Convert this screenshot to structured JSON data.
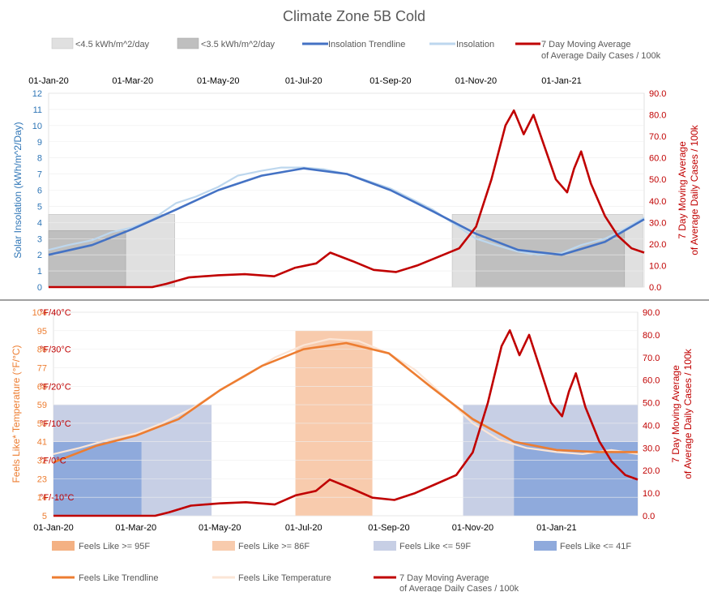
{
  "chart_data": [
    {
      "type": "line",
      "title": "Climate Zone 5B Cold",
      "y_label": "Solar Insolation (kWh/m^2/Day)",
      "y2_label_1": "7 Day Moving Average",
      "y2_label_2": "of Average Daily Cases / 100k",
      "x_ticks": [
        "01-Jan-20",
        "01-Mar-20",
        "01-May-20",
        "01-Jul-20",
        "01-Sep-20",
        "01-Nov-20",
        "01-Jan-21"
      ],
      "y_ticks": [
        "0",
        "1",
        "2",
        "3",
        "4",
        "5",
        "6",
        "7",
        "8",
        "9",
        "10",
        "11",
        "12"
      ],
      "y2_ticks": [
        "0.0",
        "10.0",
        "20.0",
        "30.0",
        "40.0",
        "50.0",
        "60.0",
        "70.0",
        "80.0",
        "90.0"
      ],
      "ylim": [
        0,
        12
      ],
      "y2lim": [
        0,
        90
      ],
      "legend": [
        {
          "label": "<4.5 kWh/m^2/day",
          "kind": "box",
          "color": "#e0e0e0"
        },
        {
          "label": "<3.5 kWh/m^2/day",
          "kind": "box",
          "color": "#bfbfbf"
        },
        {
          "label": "Insolation Trendline",
          "kind": "line",
          "color": "#4472c4"
        },
        {
          "label": "Insolation",
          "kind": "line",
          "color": "#bdd7ee"
        },
        {
          "label": "7 Day Moving Average",
          "label2": "of Average Daily Cases / 100k",
          "kind": "line",
          "color": "#c00000"
        }
      ],
      "shaded_periods_lt45": [
        [
          "2020-01-01",
          "2020-03-31"
        ],
        [
          "2020-10-15",
          "2021-02-28"
        ]
      ],
      "shaded_periods_lt35": [
        [
          "2020-01-01",
          "2020-02-25"
        ],
        [
          "2020-11-01",
          "2021-02-15"
        ]
      ],
      "insolation_trendline": [
        [
          "2020-01-01",
          2.0
        ],
        [
          "2020-02-01",
          2.6
        ],
        [
          "2020-03-01",
          3.6
        ],
        [
          "2020-04-01",
          4.8
        ],
        [
          "2020-05-01",
          6.0
        ],
        [
          "2020-06-01",
          6.9
        ],
        [
          "2020-07-01",
          7.35
        ],
        [
          "2020-08-01",
          7.0
        ],
        [
          "2020-09-01",
          6.0
        ],
        [
          "2020-10-01",
          4.7
        ],
        [
          "2020-11-01",
          3.3
        ],
        [
          "2020-12-01",
          2.3
        ],
        [
          "2021-01-01",
          2.0
        ],
        [
          "2021-02-01",
          2.8
        ],
        [
          "2021-03-01",
          4.2
        ]
      ],
      "insolation_daily": [
        [
          "2020-01-01",
          2.3
        ],
        [
          "2020-01-15",
          2.6
        ],
        [
          "2020-02-01",
          2.9
        ],
        [
          "2020-02-15",
          3.4
        ],
        [
          "2020-03-01",
          3.7
        ],
        [
          "2020-03-15",
          4.2
        ],
        [
          "2020-04-01",
          5.2
        ],
        [
          "2020-04-15",
          5.6
        ],
        [
          "2020-05-01",
          6.2
        ],
        [
          "2020-05-15",
          6.9
        ],
        [
          "2020-06-01",
          7.2
        ],
        [
          "2020-06-15",
          7.4
        ],
        [
          "2020-07-01",
          7.4
        ],
        [
          "2020-07-15",
          7.3
        ],
        [
          "2020-08-01",
          7.0
        ],
        [
          "2020-08-15",
          6.6
        ],
        [
          "2020-09-01",
          6.1
        ],
        [
          "2020-09-15",
          5.5
        ],
        [
          "2020-10-01",
          4.8
        ],
        [
          "2020-10-15",
          4.0
        ],
        [
          "2020-11-01",
          3.0
        ],
        [
          "2020-11-15",
          2.6
        ],
        [
          "2020-12-01",
          2.2
        ],
        [
          "2020-12-15",
          2.0
        ],
        [
          "2021-01-01",
          2.1
        ],
        [
          "2021-01-15",
          2.6
        ],
        [
          "2021-02-01",
          3.0
        ],
        [
          "2021-02-15",
          3.6
        ],
        [
          "2021-03-01",
          4.3
        ]
      ]
    },
    {
      "type": "line",
      "y_label": "Feels Like* Temperature (°F/°C)",
      "y2_label_1": "7 Day Moving Average",
      "y2_label_2": "of Average Daily Cases / 100k",
      "x_ticks": [
        "01-Jan-20",
        "01-Mar-20",
        "01-May-20",
        "01-Jul-20",
        "01-Sep-20",
        "01-Nov-20",
        "01-Jan-21"
      ],
      "y_ticks": [
        "5",
        "14",
        "23",
        "32",
        "41",
        "50",
        "59",
        "68",
        "77",
        "86",
        "95",
        "104"
      ],
      "celsius_marks": [
        {
          "f_value": 14,
          "text": "°F/-10°C"
        },
        {
          "f_value": 32,
          "text": "°F/0°C"
        },
        {
          "f_value": 50,
          "text": "°F/10°C"
        },
        {
          "f_value": 68,
          "text": "°F/20°C"
        },
        {
          "f_value": 86,
          "text": "°F/30°C"
        },
        {
          "f_value": 104,
          "text": "°F/40°C"
        }
      ],
      "y2_ticks": [
        "0.0",
        "10.0",
        "20.0",
        "30.0",
        "40.0",
        "50.0",
        "60.0",
        "70.0",
        "80.0",
        "90.0"
      ],
      "ylim": [
        5,
        104
      ],
      "y2lim": [
        0,
        90
      ],
      "legend": [
        {
          "label": "Feels Like >= 95F",
          "kind": "box",
          "color": "#f4b183"
        },
        {
          "label": "Feels Like >= 86F",
          "kind": "box",
          "color": "#f8cbad"
        },
        {
          "label": "Feels Like <= 59F",
          "kind": "box",
          "color": "#c7cfe5"
        },
        {
          "label": "Feels Like <= 41F",
          "kind": "box",
          "color": "#8faadc"
        },
        {
          "label": "Feels Like Trendline",
          "kind": "line",
          "color": "#ed7d31"
        },
        {
          "label": "Feels Like Temperature",
          "kind": "line",
          "color": "#fbe5d6"
        },
        {
          "label": "7 Day Moving Average",
          "label2": "of Average Daily Cases / 100k",
          "kind": "line",
          "color": "#c00000"
        }
      ],
      "shaded_periods_le59": [
        [
          "2020-01-01",
          "2020-04-25"
        ],
        [
          "2020-10-25",
          "2021-03-01"
        ]
      ],
      "shaded_periods_le41": [
        [
          "2020-01-01",
          "2020-03-05"
        ],
        [
          "2020-12-01",
          "2021-03-01"
        ]
      ],
      "shaded_periods_ge86": [
        [
          "2020-06-25",
          "2020-08-20"
        ]
      ],
      "feels_like_trendline": [
        [
          "2020-01-01",
          31
        ],
        [
          "2020-02-01",
          39
        ],
        [
          "2020-03-01",
          44
        ],
        [
          "2020-04-01",
          52
        ],
        [
          "2020-05-01",
          66
        ],
        [
          "2020-06-01",
          78
        ],
        [
          "2020-07-01",
          86
        ],
        [
          "2020-08-01",
          89
        ],
        [
          "2020-09-01",
          84
        ],
        [
          "2020-10-01",
          68
        ],
        [
          "2020-11-01",
          52
        ],
        [
          "2020-12-01",
          41
        ],
        [
          "2021-01-01",
          37
        ],
        [
          "2021-02-01",
          36
        ],
        [
          "2021-03-01",
          36
        ]
      ],
      "feels_like_daily": [
        [
          "2020-01-01",
          35
        ],
        [
          "2020-01-20",
          38
        ],
        [
          "2020-02-10",
          42
        ],
        [
          "2020-03-01",
          45
        ],
        [
          "2020-03-20",
          50
        ],
        [
          "2020-04-10",
          57
        ],
        [
          "2020-05-01",
          66
        ],
        [
          "2020-05-20",
          73
        ],
        [
          "2020-06-10",
          82
        ],
        [
          "2020-07-01",
          88
        ],
        [
          "2020-07-20",
          91
        ],
        [
          "2020-08-10",
          90
        ],
        [
          "2020-09-01",
          84
        ],
        [
          "2020-09-20",
          76
        ],
        [
          "2020-10-10",
          64
        ],
        [
          "2020-11-01",
          50
        ],
        [
          "2020-11-20",
          42
        ],
        [
          "2020-12-10",
          38
        ],
        [
          "2021-01-01",
          36
        ],
        [
          "2021-01-20",
          35
        ],
        [
          "2021-02-10",
          37
        ],
        [
          "2021-03-01",
          35
        ]
      ]
    }
  ],
  "cases_7day_avg": [
    [
      "2020-01-01",
      0
    ],
    [
      "2020-03-15",
      0
    ],
    [
      "2020-03-25",
      1.5
    ],
    [
      "2020-04-10",
      4.5
    ],
    [
      "2020-05-01",
      5.5
    ],
    [
      "2020-05-20",
      6
    ],
    [
      "2020-06-10",
      5
    ],
    [
      "2020-06-25",
      9
    ],
    [
      "2020-07-10",
      11
    ],
    [
      "2020-07-20",
      16
    ],
    [
      "2020-08-05",
      12
    ],
    [
      "2020-08-20",
      8
    ],
    [
      "2020-09-05",
      7
    ],
    [
      "2020-09-20",
      10
    ],
    [
      "2020-10-05",
      14
    ],
    [
      "2020-10-20",
      18
    ],
    [
      "2020-11-01",
      28
    ],
    [
      "2020-11-12",
      50
    ],
    [
      "2020-11-22",
      75
    ],
    [
      "2020-11-28",
      82
    ],
    [
      "2020-12-05",
      71
    ],
    [
      "2020-12-12",
      80
    ],
    [
      "2020-12-20",
      65
    ],
    [
      "2020-12-28",
      50
    ],
    [
      "2021-01-05",
      44
    ],
    [
      "2021-01-10",
      55
    ],
    [
      "2021-01-15",
      63
    ],
    [
      "2021-01-22",
      48
    ],
    [
      "2021-02-01",
      33
    ],
    [
      "2021-02-10",
      24
    ],
    [
      "2021-02-20",
      18
    ],
    [
      "2021-03-01",
      16
    ]
  ]
}
